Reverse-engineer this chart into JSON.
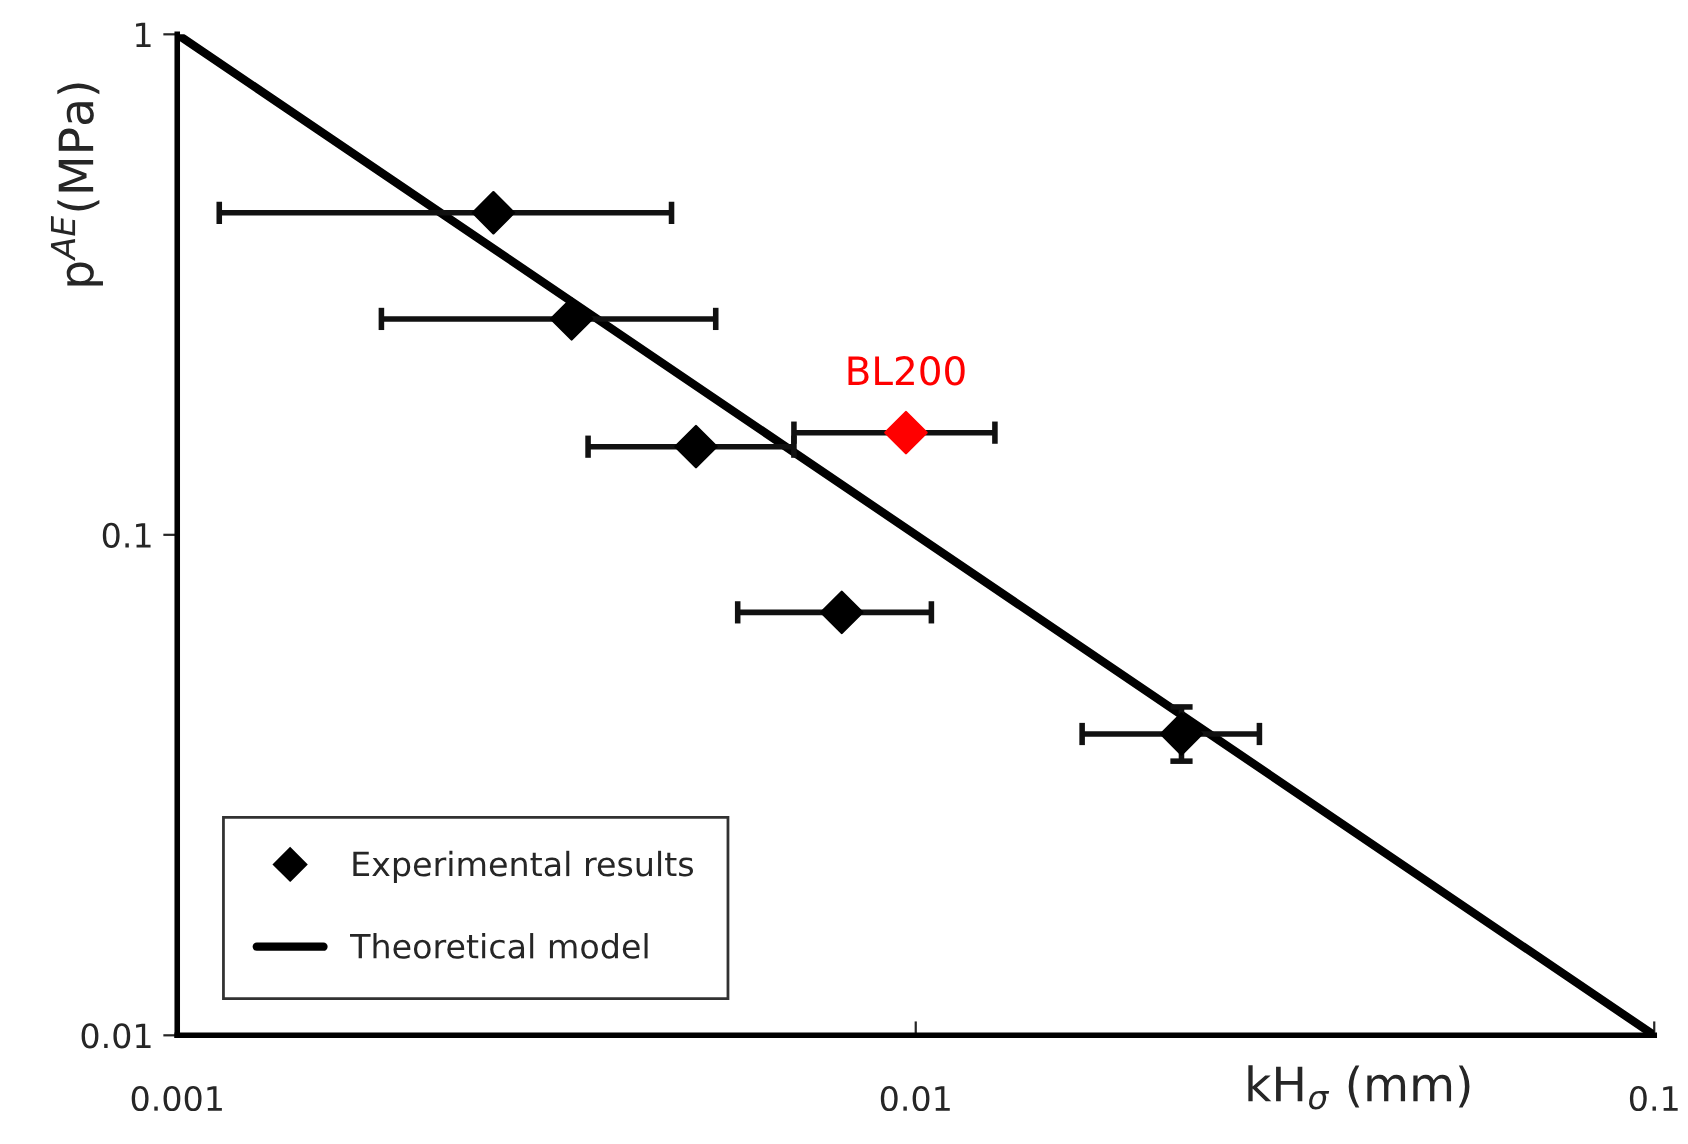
{
  "chart_data": {
    "type": "scatter",
    "xlabel": "kH$_{σ}$ (mm)",
    "ylabel": "p$^{AE}$(MPa)",
    "log": "xy",
    "xlim": [
      0.001,
      0.1
    ],
    "xticks": [
      0.001,
      0.01,
      0.1
    ],
    "ylim": [
      0.01,
      1
    ],
    "yticks": [
      0.01,
      0.1,
      1
    ],
    "grid": false,
    "legend": "bottom left",
    "marker": "diamond",
    "series": [
      {
        "name": "Experimental results",
        "color": "#000000",
        "x": [
          0.00268,
          0.00342,
          0.00504,
          0.00794,
          0.0229
        ],
        "values": [
          0.44,
          0.27,
          0.15,
          0.07,
          0.04
        ],
        "xerrors": [
          [
            0.00114,
            0.00467
          ],
          [
            0.00189,
            0.00536
          ],
          [
            0.0036,
            0.00684
          ],
          [
            0.00574,
            0.0105
          ],
          [
            0.0168,
            0.0292
          ]
        ],
        "errors": [
          null,
          null,
          null,
          null,
          [
            0.0353,
            0.0453
          ]
        ]
      },
      {
        "name": "BL200",
        "color": "#ff0000",
        "x": [
          0.0097
        ],
        "values": [
          0.16
        ],
        "xerrors": [
          [
            0.00684,
            0.0128
          ]
        ]
      },
      {
        "name": "Theoretical model",
        "type": "line",
        "color": "#000000",
        "marker": "none",
        "x": [
          0.001,
          0.1
        ],
        "values": [
          1,
          0.01
        ]
      }
    ]
  }
}
